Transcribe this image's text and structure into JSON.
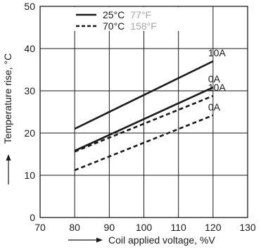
{
  "chart_data": {
    "type": "line",
    "xlabel": "Coil applied voltage, %V",
    "ylabel": "Temperature rise, °C",
    "xlim": [
      70,
      130
    ],
    "ylim": [
      0,
      50
    ],
    "x_ticks": [
      70,
      80,
      90,
      100,
      110,
      120,
      130
    ],
    "y_ticks": [
      0,
      10,
      20,
      30,
      40,
      50
    ],
    "grid": true,
    "legend_position": "top-left",
    "legend": [
      {
        "label": "25°C",
        "label_f": "77°F",
        "style": "solid"
      },
      {
        "label": "70°C",
        "label_f": "158°F",
        "style": "dashed"
      }
    ],
    "series": [
      {
        "name": "10A",
        "temperature": "25°C",
        "style": "solid",
        "x": [
          80,
          120
        ],
        "y": [
          21,
          37
        ]
      },
      {
        "name": "0A",
        "temperature": "25°C",
        "style": "solid",
        "x": [
          80,
          120
        ],
        "y": [
          15.8,
          30.8
        ]
      },
      {
        "name": "10A",
        "temperature": "70°C",
        "style": "dashed",
        "x": [
          80,
          120
        ],
        "y": [
          15.6,
          28.8
        ]
      },
      {
        "name": "0A",
        "temperature": "70°C",
        "style": "dashed",
        "x": [
          80,
          120
        ],
        "y": [
          11.2,
          24.2
        ]
      }
    ],
    "colors": {
      "line": "#1a1a1a",
      "grid": "#1a1a1a",
      "legend_f": "#a6a6a6"
    }
  }
}
